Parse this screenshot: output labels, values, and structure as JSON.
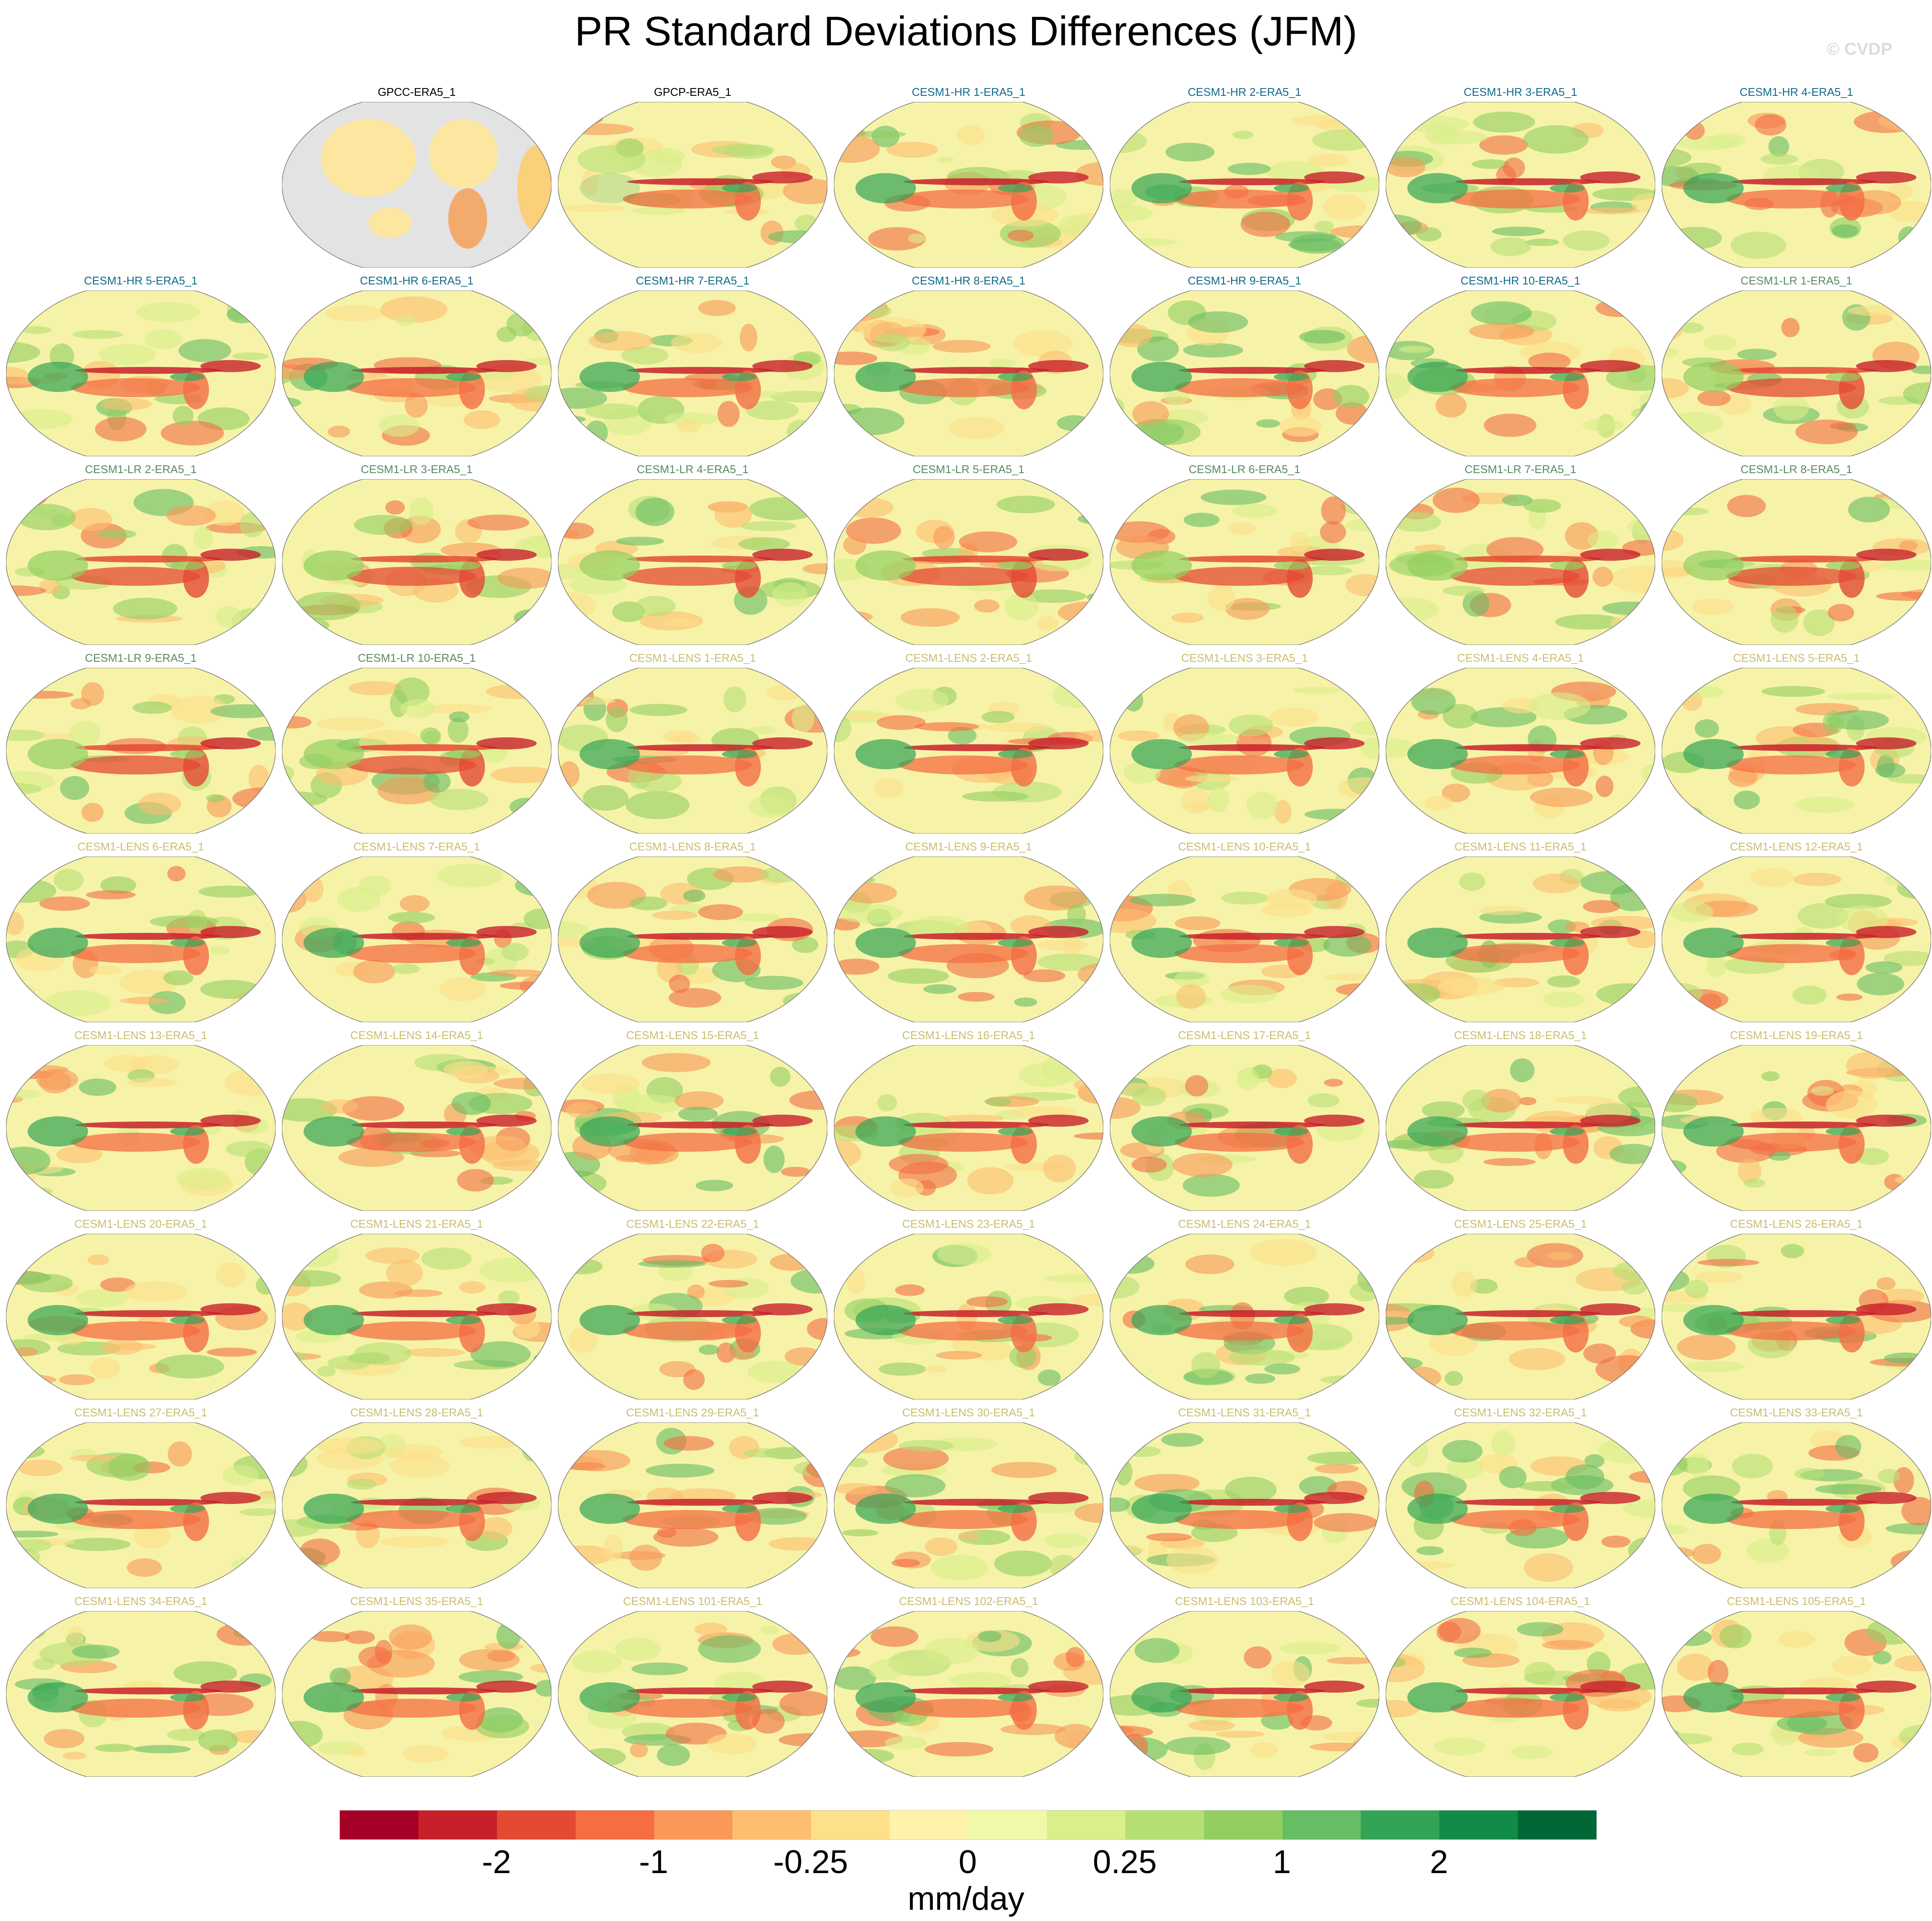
{
  "title": "PR Standard Deviations Differences (JFM)",
  "watermark": "© CVDP",
  "group_colors": {
    "obs": "#000000",
    "hr": "#0f6a8a",
    "lr": "#5b8a63",
    "lens": "#c8bf6e"
  },
  "panels": [
    {
      "label": "GPCC-ERA5_1",
      "group": "obs",
      "land_only": true
    },
    {
      "label": "GPCP-ERA5_1",
      "group": "obs"
    },
    {
      "label": "CESM1-HR 1-ERA5_1",
      "group": "hr"
    },
    {
      "label": "CESM1-HR 2-ERA5_1",
      "group": "hr"
    },
    {
      "label": "CESM1-HR 3-ERA5_1",
      "group": "hr"
    },
    {
      "label": "CESM1-HR 4-ERA5_1",
      "group": "hr"
    },
    {
      "label": "CESM1-HR 5-ERA5_1",
      "group": "hr"
    },
    {
      "label": "CESM1-HR 6-ERA5_1",
      "group": "hr"
    },
    {
      "label": "CESM1-HR 7-ERA5_1",
      "group": "hr"
    },
    {
      "label": "CESM1-HR 8-ERA5_1",
      "group": "hr"
    },
    {
      "label": "CESM1-HR 9-ERA5_1",
      "group": "hr"
    },
    {
      "label": "CESM1-HR 10-ERA5_1",
      "group": "hr"
    },
    {
      "label": "CESM1-LR 1-ERA5_1",
      "group": "lr"
    },
    {
      "label": "CESM1-LR 2-ERA5_1",
      "group": "lr"
    },
    {
      "label": "CESM1-LR 3-ERA5_1",
      "group": "lr"
    },
    {
      "label": "CESM1-LR 4-ERA5_1",
      "group": "lr"
    },
    {
      "label": "CESM1-LR 5-ERA5_1",
      "group": "lr"
    },
    {
      "label": "CESM1-LR 6-ERA5_1",
      "group": "lr"
    },
    {
      "label": "CESM1-LR 7-ERA5_1",
      "group": "lr"
    },
    {
      "label": "CESM1-LR 8-ERA5_1",
      "group": "lr"
    },
    {
      "label": "CESM1-LR 9-ERA5_1",
      "group": "lr"
    },
    {
      "label": "CESM1-LR 10-ERA5_1",
      "group": "lr"
    },
    {
      "label": "CESM1-LENS 1-ERA5_1",
      "group": "lens"
    },
    {
      "label": "CESM1-LENS 2-ERA5_1",
      "group": "lens"
    },
    {
      "label": "CESM1-LENS 3-ERA5_1",
      "group": "lens"
    },
    {
      "label": "CESM1-LENS 4-ERA5_1",
      "group": "lens"
    },
    {
      "label": "CESM1-LENS 5-ERA5_1",
      "group": "lens"
    },
    {
      "label": "CESM1-LENS 6-ERA5_1",
      "group": "lens"
    },
    {
      "label": "CESM1-LENS 7-ERA5_1",
      "group": "lens"
    },
    {
      "label": "CESM1-LENS 8-ERA5_1",
      "group": "lens"
    },
    {
      "label": "CESM1-LENS 9-ERA5_1",
      "group": "lens"
    },
    {
      "label": "CESM1-LENS 10-ERA5_1",
      "group": "lens"
    },
    {
      "label": "CESM1-LENS 11-ERA5_1",
      "group": "lens"
    },
    {
      "label": "CESM1-LENS 12-ERA5_1",
      "group": "lens"
    },
    {
      "label": "CESM1-LENS 13-ERA5_1",
      "group": "lens"
    },
    {
      "label": "CESM1-LENS 14-ERA5_1",
      "group": "lens"
    },
    {
      "label": "CESM1-LENS 15-ERA5_1",
      "group": "lens"
    },
    {
      "label": "CESM1-LENS 16-ERA5_1",
      "group": "lens"
    },
    {
      "label": "CESM1-LENS 17-ERA5_1",
      "group": "lens"
    },
    {
      "label": "CESM1-LENS 18-ERA5_1",
      "group": "lens"
    },
    {
      "label": "CESM1-LENS 19-ERA5_1",
      "group": "lens"
    },
    {
      "label": "CESM1-LENS 20-ERA5_1",
      "group": "lens"
    },
    {
      "label": "CESM1-LENS 21-ERA5_1",
      "group": "lens"
    },
    {
      "label": "CESM1-LENS 22-ERA5_1",
      "group": "lens"
    },
    {
      "label": "CESM1-LENS 23-ERA5_1",
      "group": "lens"
    },
    {
      "label": "CESM1-LENS 24-ERA5_1",
      "group": "lens"
    },
    {
      "label": "CESM1-LENS 25-ERA5_1",
      "group": "lens"
    },
    {
      "label": "CESM1-LENS 26-ERA5_1",
      "group": "lens"
    },
    {
      "label": "CESM1-LENS 27-ERA5_1",
      "group": "lens"
    },
    {
      "label": "CESM1-LENS 28-ERA5_1",
      "group": "lens"
    },
    {
      "label": "CESM1-LENS 29-ERA5_1",
      "group": "lens"
    },
    {
      "label": "CESM1-LENS 30-ERA5_1",
      "group": "lens"
    },
    {
      "label": "CESM1-LENS 31-ERA5_1",
      "group": "lens"
    },
    {
      "label": "CESM1-LENS 32-ERA5_1",
      "group": "lens"
    },
    {
      "label": "CESM1-LENS 33-ERA5_1",
      "group": "lens"
    },
    {
      "label": "CESM1-LENS 34-ERA5_1",
      "group": "lens"
    },
    {
      "label": "CESM1-LENS 35-ERA5_1",
      "group": "lens"
    },
    {
      "label": "CESM1-LENS 101-ERA5_1",
      "group": "lens"
    },
    {
      "label": "CESM1-LENS 102-ERA5_1",
      "group": "lens"
    },
    {
      "label": "CESM1-LENS 103-ERA5_1",
      "group": "lens"
    },
    {
      "label": "CESM1-LENS 104-ERA5_1",
      "group": "lens"
    },
    {
      "label": "CESM1-LENS 105-ERA5_1",
      "group": "lens"
    }
  ],
  "chart_data": {
    "type": "heatmap",
    "title": "PR Standard Deviations Differences (JFM)",
    "colorbar": {
      "colors": [
        "#a50026",
        "#c8202a",
        "#e34a33",
        "#f46d43",
        "#f99858",
        "#fdbe6f",
        "#fee08b",
        "#fff2aa",
        "#f0f8aa",
        "#d9ef8b",
        "#b5df75",
        "#91cf60",
        "#66bd63",
        "#33a456",
        "#138b48",
        "#006837"
      ],
      "tick_labels": [
        "-2",
        "-1",
        "-0.25",
        "0",
        "0.25",
        "1",
        "2"
      ],
      "tick_boundary_index": [
        2,
        4,
        6,
        8,
        10,
        12,
        14
      ],
      "units": "mm/day"
    }
  }
}
